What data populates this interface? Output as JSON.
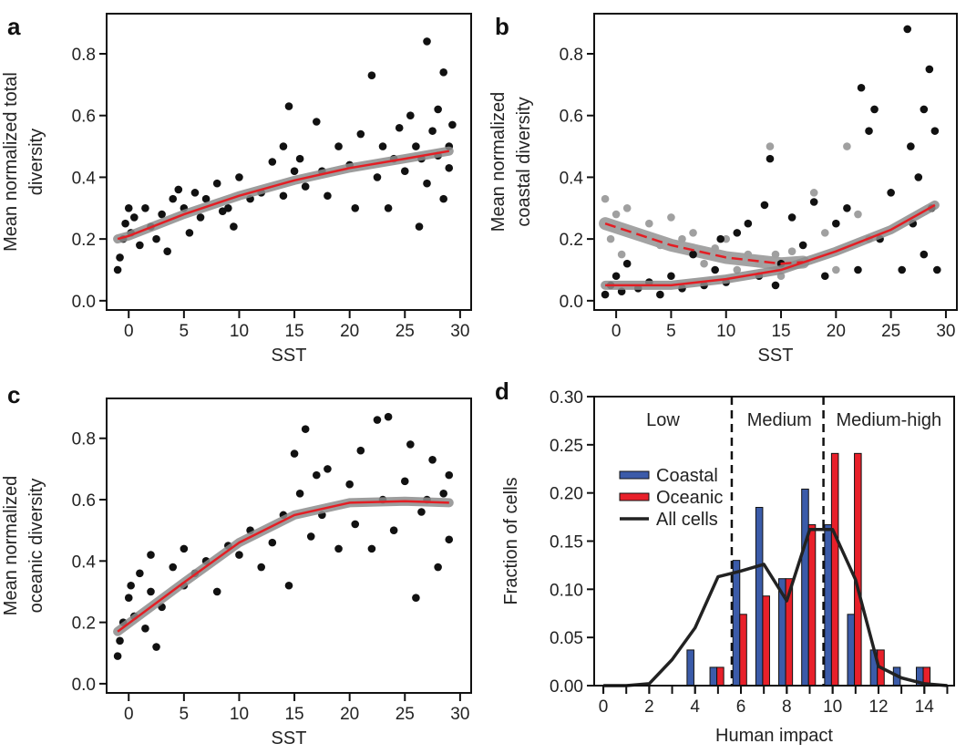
{
  "colors": {
    "point": "#111111",
    "grey_point": "#a0a0a0",
    "fit": "#e31e24",
    "band": "#8c8c8c",
    "coastal": "#3b5ba9",
    "oceanic": "#e8202a",
    "all_cells": "#222222"
  },
  "chart_data": [
    {
      "panel": "a",
      "type": "scatter",
      "xlabel": "SST",
      "ylabel": [
        "Mean normalized total",
        "diversity"
      ],
      "xlim": [
        -2,
        31
      ],
      "ylim": [
        -0.03,
        0.93
      ],
      "xticks": [
        0,
        5,
        10,
        15,
        20,
        25,
        30
      ],
      "yticks": [
        "0.0",
        "0.2",
        "0.4",
        "0.6",
        "0.8"
      ],
      "points": [
        [
          -1,
          0.1
        ],
        [
          -0.8,
          0.14
        ],
        [
          -0.5,
          0.2
        ],
        [
          -0.3,
          0.25
        ],
        [
          0,
          0.3
        ],
        [
          0.2,
          0.22
        ],
        [
          0.5,
          0.27
        ],
        [
          1,
          0.18
        ],
        [
          1.5,
          0.3
        ],
        [
          2,
          0.24
        ],
        [
          2.5,
          0.2
        ],
        [
          3,
          0.28
        ],
        [
          3.5,
          0.16
        ],
        [
          4,
          0.33
        ],
        [
          4.5,
          0.36
        ],
        [
          5,
          0.3
        ],
        [
          5.5,
          0.22
        ],
        [
          6,
          0.35
        ],
        [
          6.5,
          0.27
        ],
        [
          7,
          0.33
        ],
        [
          8,
          0.38
        ],
        [
          8.5,
          0.29
        ],
        [
          9,
          0.3
        ],
        [
          9.5,
          0.24
        ],
        [
          10,
          0.4
        ],
        [
          11,
          0.33
        ],
        [
          12,
          0.35
        ],
        [
          13,
          0.45
        ],
        [
          14,
          0.5
        ],
        [
          14,
          0.34
        ],
        [
          14.5,
          0.63
        ],
        [
          15,
          0.42
        ],
        [
          15.5,
          0.46
        ],
        [
          16,
          0.37
        ],
        [
          17,
          0.58
        ],
        [
          17.5,
          0.42
        ],
        [
          18,
          0.34
        ],
        [
          19,
          0.5
        ],
        [
          20,
          0.44
        ],
        [
          20.5,
          0.3
        ],
        [
          21,
          0.54
        ],
        [
          22,
          0.73
        ],
        [
          22.5,
          0.4
        ],
        [
          23,
          0.5
        ],
        [
          23.5,
          0.3
        ],
        [
          24,
          0.46
        ],
        [
          24.5,
          0.56
        ],
        [
          25,
          0.42
        ],
        [
          25.5,
          0.6
        ],
        [
          26,
          0.5
        ],
        [
          26.3,
          0.24
        ],
        [
          26.5,
          0.46
        ],
        [
          27,
          0.84
        ],
        [
          27,
          0.38
        ],
        [
          27.5,
          0.55
        ],
        [
          28,
          0.47
        ],
        [
          28,
          0.62
        ],
        [
          28.5,
          0.74
        ],
        [
          28.5,
          0.33
        ],
        [
          29,
          0.43
        ],
        [
          29,
          0.5
        ],
        [
          29.3,
          0.57
        ]
      ],
      "fit": [
        [
          -1,
          0.2
        ],
        [
          0,
          0.21
        ],
        [
          5,
          0.28
        ],
        [
          10,
          0.34
        ],
        [
          15,
          0.39
        ],
        [
          20,
          0.43
        ],
        [
          25,
          0.46
        ],
        [
          29,
          0.485
        ]
      ]
    },
    {
      "panel": "b",
      "type": "scatter",
      "xlabel": "SST",
      "ylabel": [
        "Mean normalized",
        "coastal diversity"
      ],
      "xlim": [
        -2,
        31
      ],
      "ylim": [
        -0.03,
        0.93
      ],
      "xticks": [
        0,
        5,
        10,
        15,
        20,
        25,
        30
      ],
      "yticks": [
        "0.0",
        "0.2",
        "0.4",
        "0.6",
        "0.8"
      ],
      "grey_points": [
        [
          -1,
          0.33
        ],
        [
          -0.5,
          0.2
        ],
        [
          0,
          0.28
        ],
        [
          0.5,
          0.15
        ],
        [
          1,
          0.3
        ],
        [
          2,
          0.22
        ],
        [
          3,
          0.25
        ],
        [
          4,
          0.18
        ],
        [
          5,
          0.27
        ],
        [
          6,
          0.2
        ],
        [
          7,
          0.22
        ],
        [
          8,
          0.12
        ],
        [
          9,
          0.17
        ],
        [
          10,
          0.2
        ],
        [
          11,
          0.1
        ],
        [
          12,
          0.15
        ],
        [
          13,
          0.12
        ],
        [
          14,
          0.5
        ],
        [
          14.5,
          0.15
        ],
        [
          15,
          0.08
        ],
        [
          16,
          0.16
        ],
        [
          17,
          0.12
        ],
        [
          18,
          0.35
        ],
        [
          19,
          0.22
        ],
        [
          20,
          0.1
        ],
        [
          21,
          0.5
        ],
        [
          22,
          0.28
        ],
        [
          23,
          0.2
        ]
      ],
      "points": [
        [
          -1,
          0.02
        ],
        [
          -0.5,
          0.05
        ],
        [
          0,
          0.08
        ],
        [
          0.5,
          0.03
        ],
        [
          1,
          0.12
        ],
        [
          2,
          0.04
        ],
        [
          3,
          0.06
        ],
        [
          4,
          0.02
        ],
        [
          5,
          0.08
        ],
        [
          6,
          0.04
        ],
        [
          7,
          0.15
        ],
        [
          8,
          0.05
        ],
        [
          9,
          0.1
        ],
        [
          9.5,
          0.2
        ],
        [
          10,
          0.06
        ],
        [
          11,
          0.22
        ],
        [
          12,
          0.25
        ],
        [
          13,
          0.08
        ],
        [
          13.5,
          0.31
        ],
        [
          14,
          0.46
        ],
        [
          14.5,
          0.05
        ],
        [
          15,
          0.12
        ],
        [
          16,
          0.27
        ],
        [
          17,
          0.18
        ],
        [
          18,
          0.32
        ],
        [
          19,
          0.08
        ],
        [
          20,
          0.25
        ],
        [
          21,
          0.3
        ],
        [
          22,
          0.1
        ],
        [
          22.3,
          0.69
        ],
        [
          23,
          0.55
        ],
        [
          23.5,
          0.62
        ],
        [
          24,
          0.2
        ],
        [
          25,
          0.35
        ],
        [
          26,
          0.1
        ],
        [
          26.5,
          0.88
        ],
        [
          26.8,
          0.5
        ],
        [
          27,
          0.25
        ],
        [
          27.5,
          0.4
        ],
        [
          28,
          0.62
        ],
        [
          28,
          0.15
        ],
        [
          28.5,
          0.75
        ],
        [
          28.7,
          0.3
        ],
        [
          29,
          0.55
        ],
        [
          29.2,
          0.1
        ]
      ],
      "fit": [
        [
          -1,
          0.05
        ],
        [
          5,
          0.05
        ],
        [
          10,
          0.07
        ],
        [
          15,
          0.1
        ],
        [
          20,
          0.16
        ],
        [
          25,
          0.23
        ],
        [
          29,
          0.31
        ]
      ],
      "grey_fit": [
        [
          -1,
          0.25
        ],
        [
          5,
          0.18
        ],
        [
          10,
          0.14
        ],
        [
          15,
          0.12
        ],
        [
          17,
          0.125
        ]
      ]
    },
    {
      "panel": "c",
      "type": "scatter",
      "xlabel": "SST",
      "ylabel": [
        "Mean normalized",
        "oceanic diversity"
      ],
      "xlim": [
        -2,
        31
      ],
      "ylim": [
        -0.03,
        0.93
      ],
      "xticks": [
        0,
        5,
        10,
        15,
        20,
        25,
        30
      ],
      "yticks": [
        "0.0",
        "0.2",
        "0.4",
        "0.6",
        "0.8"
      ],
      "points": [
        [
          -1,
          0.09
        ],
        [
          -0.8,
          0.14
        ],
        [
          -0.5,
          0.2
        ],
        [
          0,
          0.28
        ],
        [
          0.2,
          0.32
        ],
        [
          0.5,
          0.22
        ],
        [
          1,
          0.36
        ],
        [
          1.5,
          0.18
        ],
        [
          2,
          0.3
        ],
        [
          2,
          0.42
        ],
        [
          2.5,
          0.12
        ],
        [
          3,
          0.25
        ],
        [
          4,
          0.38
        ],
        [
          5,
          0.32
        ],
        [
          5,
          0.44
        ],
        [
          6,
          0.36
        ],
        [
          7,
          0.4
        ],
        [
          8,
          0.3
        ],
        [
          9,
          0.45
        ],
        [
          10,
          0.42
        ],
        [
          11,
          0.5
        ],
        [
          12,
          0.38
        ],
        [
          13,
          0.46
        ],
        [
          14,
          0.55
        ],
        [
          14.5,
          0.32
        ],
        [
          15,
          0.75
        ],
        [
          15.5,
          0.62
        ],
        [
          16,
          0.83
        ],
        [
          16.5,
          0.48
        ],
        [
          17,
          0.68
        ],
        [
          17.5,
          0.55
        ],
        [
          18,
          0.7
        ],
        [
          19,
          0.44
        ],
        [
          20,
          0.65
        ],
        [
          20.5,
          0.52
        ],
        [
          21,
          0.76
        ],
        [
          22,
          0.44
        ],
        [
          22.5,
          0.86
        ],
        [
          23,
          0.6
        ],
        [
          23.5,
          0.87
        ],
        [
          24,
          0.5
        ],
        [
          25,
          0.66
        ],
        [
          25.5,
          0.78
        ],
        [
          26,
          0.28
        ],
        [
          26.5,
          0.56
        ],
        [
          27,
          0.6
        ],
        [
          27.5,
          0.73
        ],
        [
          28,
          0.38
        ],
        [
          28.5,
          0.62
        ],
        [
          29,
          0.47
        ],
        [
          29,
          0.68
        ]
      ],
      "fit": [
        [
          -1,
          0.17
        ],
        [
          5,
          0.33
        ],
        [
          10,
          0.46
        ],
        [
          15,
          0.55
        ],
        [
          20,
          0.59
        ],
        [
          25,
          0.595
        ],
        [
          29,
          0.59
        ]
      ]
    },
    {
      "panel": "d",
      "type": "bar",
      "xlabel": "Human impact",
      "ylabel": [
        "Fraction of cells"
      ],
      "xlim": [
        -0.4,
        15.3
      ],
      "ylim": [
        0,
        0.3
      ],
      "xticks": [
        0,
        2,
        4,
        6,
        8,
        10,
        12,
        14
      ],
      "yticks": [
        "0.00",
        "0.05",
        "0.10",
        "0.15",
        "0.20",
        "0.25",
        "0.30"
      ],
      "categories": [
        4,
        5,
        6,
        7,
        8,
        9,
        10,
        11,
        12,
        13,
        14
      ],
      "series": [
        {
          "name": "Coastal",
          "values": [
            0.037,
            0.019,
            0.13,
            0.185,
            0.111,
            0.204,
            0.167,
            0.074,
            0.037,
            0.019,
            0.019
          ]
        },
        {
          "name": "Oceanic",
          "values": [
            0,
            0.019,
            0.074,
            0.093,
            0.111,
            0.167,
            0.241,
            0.241,
            0.037,
            0,
            0.019
          ]
        }
      ],
      "line": {
        "name": "All cells",
        "x": [
          0,
          1,
          2,
          3,
          4,
          5,
          6,
          7,
          8,
          9,
          10,
          11,
          12,
          13,
          14,
          15
        ],
        "y": [
          0,
          0,
          0.002,
          0.027,
          0.06,
          0.113,
          0.119,
          0.126,
          0.088,
          0.162,
          0.162,
          0.11,
          0.02,
          0.008,
          0.002,
          0
        ]
      },
      "thresholds": [
        5.6,
        9.6
      ],
      "regions": [
        "Low",
        "Medium",
        "Medium-high"
      ],
      "legend": "left"
    }
  ]
}
